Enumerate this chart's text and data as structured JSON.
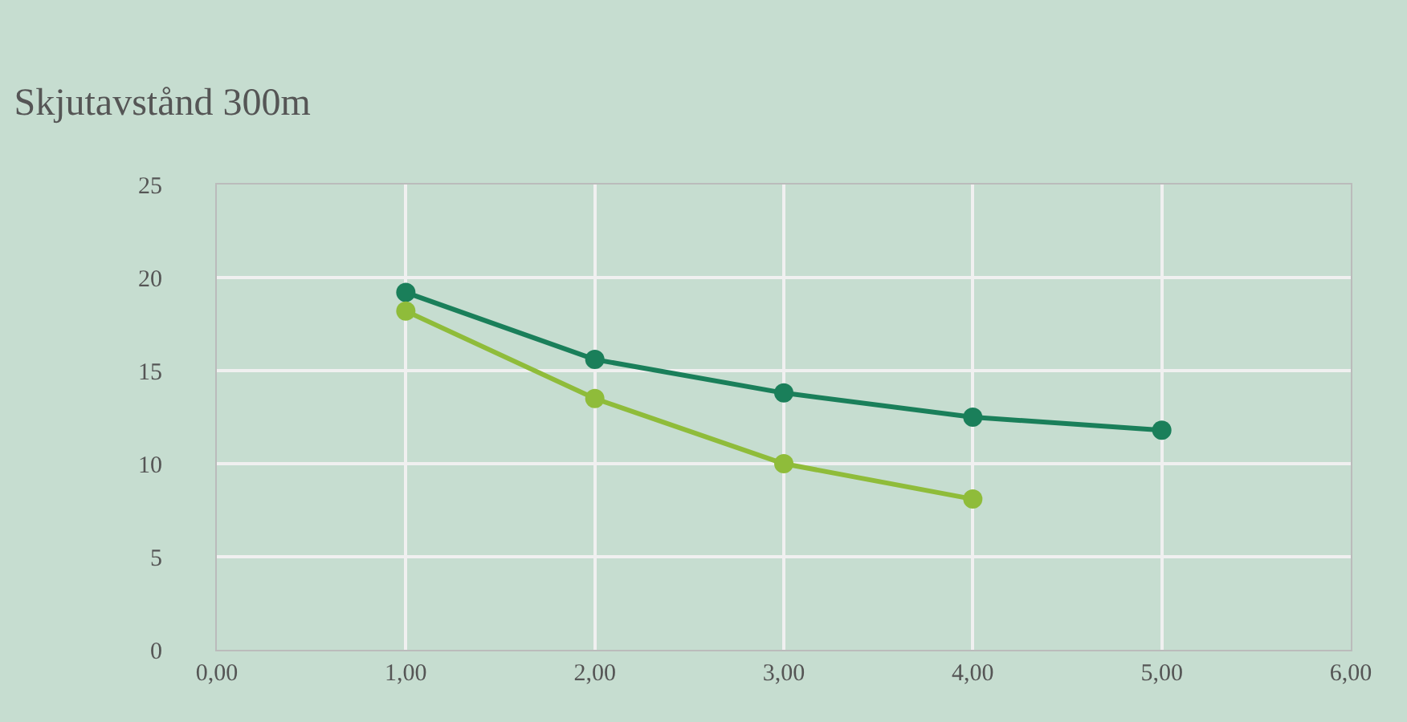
{
  "chart_data": {
    "type": "line",
    "title": "Skjutavstånd 300m",
    "xlim": [
      0,
      6
    ],
    "xticks": [
      {
        "value": 0,
        "label": "0,00"
      },
      {
        "value": 1,
        "label": "1,00"
      },
      {
        "value": 2,
        "label": "2,00"
      },
      {
        "value": 3,
        "label": "3,00"
      },
      {
        "value": 4,
        "label": "4,00"
      },
      {
        "value": 5,
        "label": "5,00"
      },
      {
        "value": 6,
        "label": "6,00"
      }
    ],
    "ylim": [
      0,
      25
    ],
    "yticks": [
      0,
      5,
      10,
      15,
      20,
      25
    ],
    "grid": true,
    "marker": "circle",
    "line_style": "solid",
    "series": [
      {
        "color": "#1a7f5a",
        "x": [
          1,
          2,
          3,
          4,
          5
        ],
        "values": [
          19.2,
          15.6,
          13.8,
          12.5,
          11.8
        ]
      },
      {
        "color": "#8fbc3a",
        "x": [
          1,
          2,
          3,
          4
        ],
        "values": [
          18.2,
          13.5,
          10.0,
          8.1
        ]
      }
    ]
  }
}
